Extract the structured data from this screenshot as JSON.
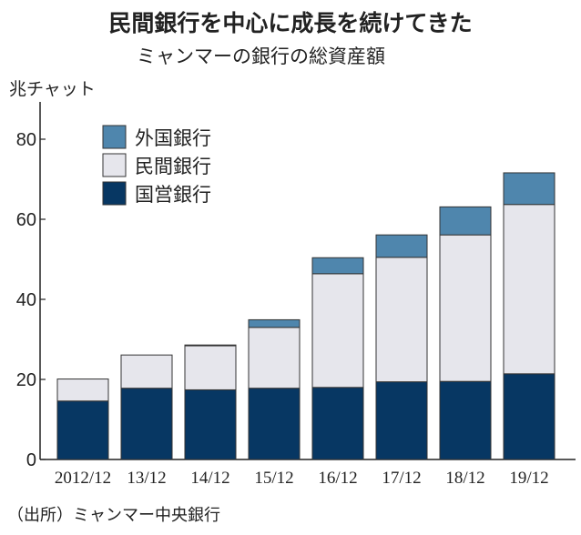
{
  "chart_data": {
    "type": "bar",
    "stacked": true,
    "title": "民間銀行を中心に成長を続けてきた",
    "subtitle": "ミャンマーの銀行の総資産額",
    "ylabel": "兆チャット",
    "source": "（出所）ミャンマー中央銀行",
    "ylim": [
      0,
      80
    ],
    "yticks": [
      0,
      20,
      40,
      60,
      80
    ],
    "grid": false,
    "legend_position": "top-left",
    "categories": [
      "2012/12",
      "13/12",
      "14/12",
      "15/12",
      "16/12",
      "17/12",
      "18/12",
      "19/12"
    ],
    "series": [
      {
        "name": "国営銀行",
        "color": "#073763",
        "values": [
          14.6,
          17.8,
          17.4,
          17.8,
          18.0,
          19.4,
          19.5,
          21.4
        ]
      },
      {
        "name": "民間銀行",
        "color": "#e6e6ec",
        "values": [
          5.5,
          8.3,
          11.0,
          15.2,
          28.4,
          31.1,
          36.6,
          42.3
        ]
      },
      {
        "name": "外国銀行",
        "color": "#4f86ad",
        "values": [
          0,
          0,
          0.2,
          1.9,
          4.0,
          5.6,
          7.0,
          7.9
        ]
      }
    ],
    "legend_order": [
      "外国銀行",
      "民間銀行",
      "国営銀行"
    ]
  }
}
